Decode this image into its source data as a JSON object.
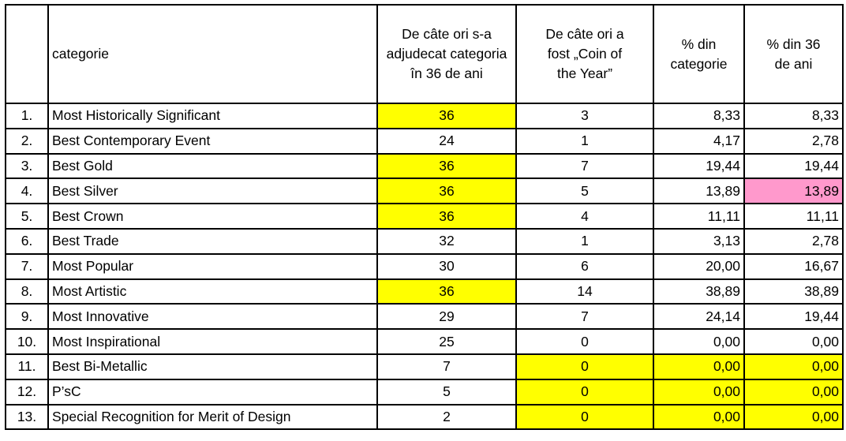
{
  "colors": {
    "highlight_yellow": "#ffff00",
    "highlight_pink": "#ff99cc",
    "value_blue": "#2e2ec2",
    "border_black": "#000000"
  },
  "table": {
    "headers": {
      "index": "",
      "category": "categorie",
      "awarded": "De câte ori s-a adjudecat categoria în 36 de ani",
      "coty": "De câte ori a\nfost „Coin of\nthe Year”",
      "pct_category": "% din\ncategorie",
      "pct_36": "% din 36\nde ani"
    },
    "rows": [
      {
        "no": "1.",
        "category": "Most Historically Significant",
        "awarded": "36",
        "coty": "3",
        "pct_category": "8,33",
        "pct_36": "8,33",
        "hl": {
          "awarded": "yellow"
        }
      },
      {
        "no": "2.",
        "category": "Best Contemporary Event",
        "awarded": "24",
        "coty": "1",
        "pct_category": "4,17",
        "pct_36": "2,78",
        "hl": {}
      },
      {
        "no": "3.",
        "category": "Best Gold",
        "awarded": "36",
        "coty": "7",
        "pct_category": "19,44",
        "pct_36": "19,44",
        "hl": {
          "awarded": "yellow"
        }
      },
      {
        "no": "4.",
        "category": "Best Silver",
        "awarded": "36",
        "coty": "5",
        "pct_category": "13,89",
        "pct_36": "13,89",
        "hl": {
          "awarded": "yellow",
          "pct_36": "pink"
        }
      },
      {
        "no": "5.",
        "category": "Best Crown",
        "awarded": "36",
        "coty": "4",
        "pct_category": "11,11",
        "pct_36": "11,11",
        "hl": {
          "awarded": "yellow"
        }
      },
      {
        "no": "6.",
        "category": "Best Trade",
        "awarded": "32",
        "coty": "1",
        "pct_category": "3,13",
        "pct_36": "2,78",
        "hl": {}
      },
      {
        "no": "7.",
        "category": "Most Popular",
        "awarded": "30",
        "coty": "6",
        "pct_category": "20,00",
        "pct_36": "16,67",
        "hl": {}
      },
      {
        "no": "8.",
        "category": "Most Artistic",
        "awarded": "36",
        "coty": "14",
        "pct_category": "38,89",
        "pct_36": "38,89",
        "hl": {
          "awarded": "yellow"
        }
      },
      {
        "no": "9.",
        "category": "Most Innovative",
        "awarded": "29",
        "coty": "7",
        "pct_category": "24,14",
        "pct_36": "19,44",
        "hl": {}
      },
      {
        "no": "10.",
        "category": "Most Inspirational",
        "awarded": "25",
        "coty": "0",
        "pct_category": "0,00",
        "pct_36": "0,00",
        "hl": {}
      },
      {
        "no": "11.",
        "category": "Best Bi-Metallic",
        "awarded": "7",
        "coty": "0",
        "pct_category": "0,00",
        "pct_36": "0,00",
        "hl": {
          "coty": "yellow",
          "pct_category": "yellow",
          "pct_36": "yellow"
        }
      },
      {
        "no": "12.",
        "category": "P’sC",
        "awarded": "5",
        "coty": "0",
        "pct_category": "0,00",
        "pct_36": "0,00",
        "hl": {
          "coty": "yellow",
          "pct_category": "yellow",
          "pct_36": "yellow"
        }
      },
      {
        "no": "13.",
        "category": "Special Recognition for Merit of Design",
        "awarded": "2",
        "coty": "0",
        "pct_category": "0,00",
        "pct_36": "0,00",
        "hl": {
          "coty": "yellow",
          "pct_category": "yellow",
          "pct_36": "yellow"
        }
      }
    ]
  }
}
